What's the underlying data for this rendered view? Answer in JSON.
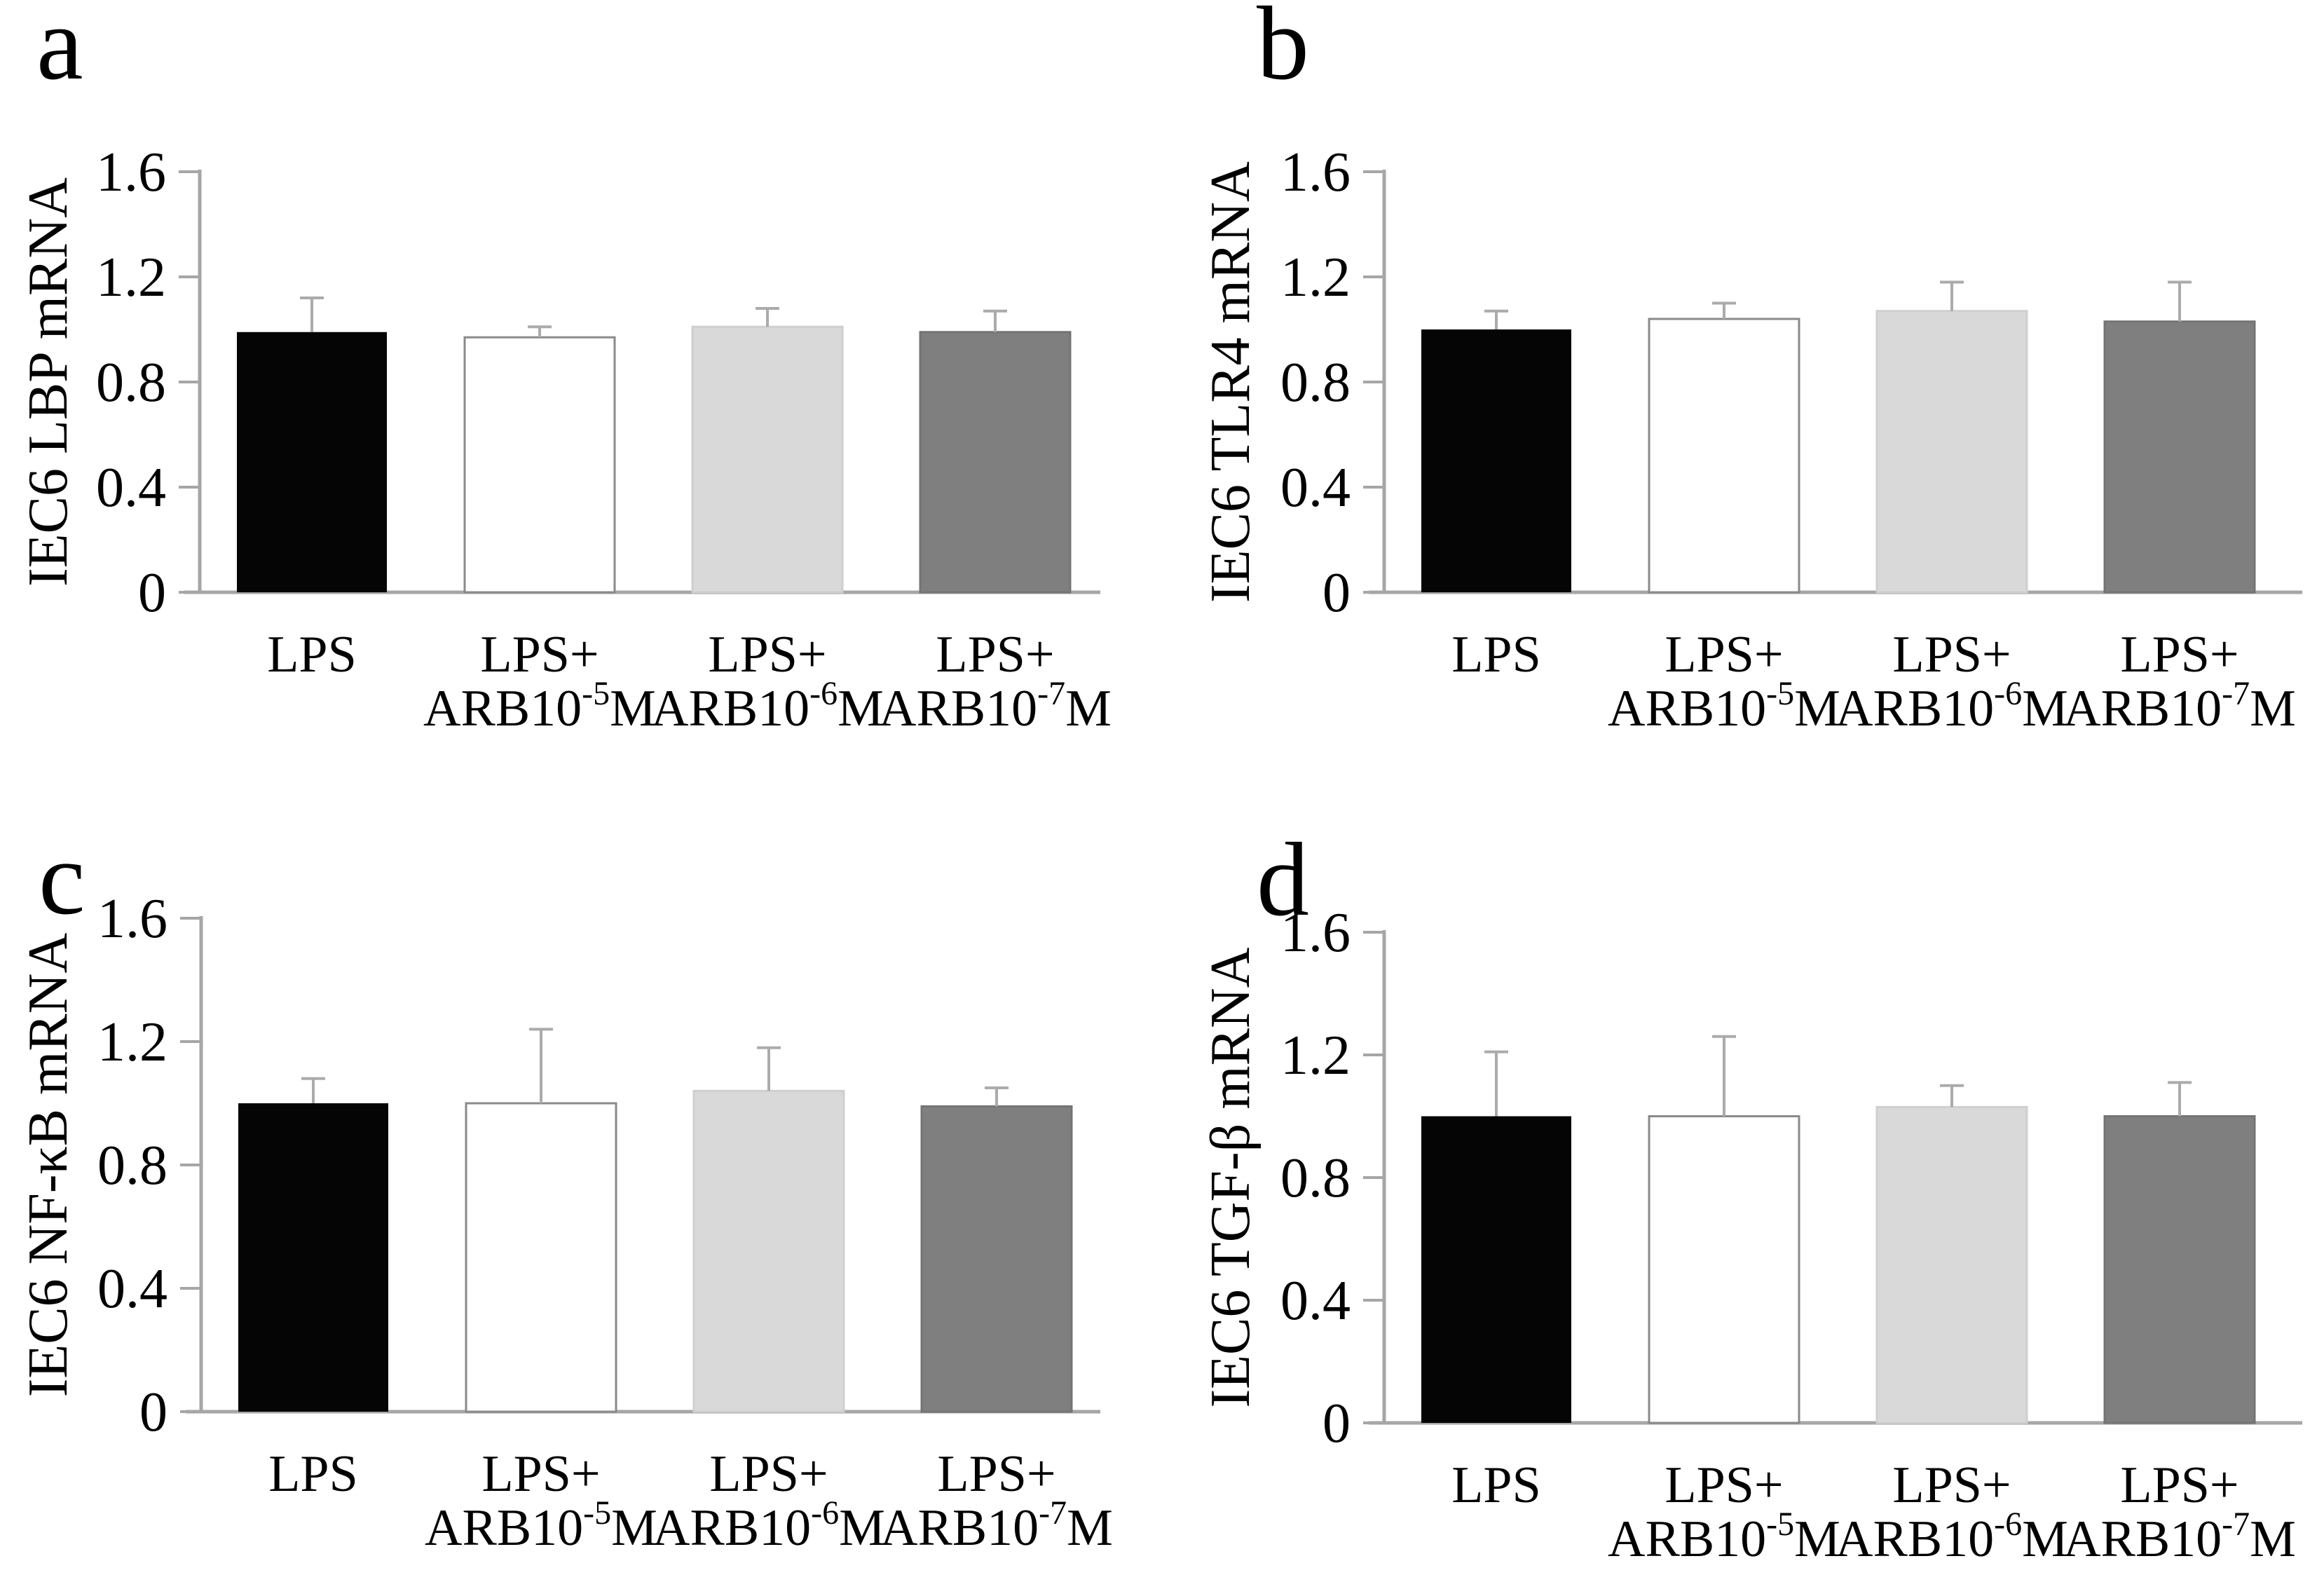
{
  "page": {
    "background": "#ffffff",
    "description": "Four-panel bar chart figure (a-d) showing IEC6 cell mRNA levels under LPS and LPS+ARB treatments"
  },
  "styles": {
    "axis_color": "#a6a6a6",
    "error_bar_color": "#ababab",
    "text_color": "#000000",
    "bar_fills": [
      "#050505",
      "#ffffff",
      "#d9d9d9",
      "#7f7f7f"
    ],
    "bar_strokes": [
      "#050505",
      "#8a8a8a",
      "#cfcfcf",
      "#747474"
    ]
  },
  "categories_rich": [
    {
      "line1": "LPS",
      "line2_pre": "",
      "line2_sup": "",
      "line2_post": ""
    },
    {
      "line1": "LPS+",
      "line2_pre": "ARB10",
      "line2_sup": "-5",
      "line2_post": "M"
    },
    {
      "line1": "LPS+",
      "line2_pre": "ARB10",
      "line2_sup": "-6",
      "line2_post": "M"
    },
    {
      "line1": "LPS+",
      "line2_pre": "ARB10",
      "line2_sup": "-7",
      "line2_post": "M"
    }
  ],
  "category_keys": [
    "lps",
    "lps-arb10-5m",
    "lps-arb10-6m",
    "lps-arb10-7m"
  ],
  "chart_data": [
    {
      "type": "bar",
      "panel": "a",
      "title": "",
      "xlabel": "",
      "ylabel": "IEC6 LBP mRNA",
      "categories": [
        "LPS",
        "LPS+ARB10⁻⁵M",
        "LPS+ARB10⁻⁶M",
        "LPS+ARB10⁻⁷M"
      ],
      "values": [
        0.99,
        0.97,
        1.01,
        0.99
      ],
      "errors_upper": [
        0.13,
        0.04,
        0.07,
        0.08
      ],
      "ylim": [
        0,
        1.6
      ],
      "yticks": [
        0,
        0.4,
        0.8,
        1.2,
        1.6
      ],
      "ytick_labels": [
        "0",
        "0.4",
        "0.8",
        "1.2",
        "1.6"
      ],
      "grid": false,
      "legend": null
    },
    {
      "type": "bar",
      "panel": "b",
      "title": "",
      "xlabel": "",
      "ylabel": "IEC6 TLR4 mRNA",
      "categories": [
        "LPS",
        "LPS+ARB10⁻⁵M",
        "LPS+ARB10⁻⁶M",
        "LPS+ARB10⁻⁷M"
      ],
      "values": [
        1.0,
        1.04,
        1.07,
        1.03
      ],
      "errors_upper": [
        0.07,
        0.06,
        0.11,
        0.15
      ],
      "ylim": [
        0,
        1.6
      ],
      "yticks": [
        0,
        0.4,
        0.8,
        1.2,
        1.6
      ],
      "ytick_labels": [
        "0",
        "0.4",
        "0.8",
        "1.2",
        "1.6"
      ],
      "grid": false,
      "legend": null
    },
    {
      "type": "bar",
      "panel": "c",
      "title": "",
      "xlabel": "",
      "ylabel": "IEC6 NF-κB mRNA",
      "categories": [
        "LPS",
        "LPS+ARB10⁻⁵M",
        "LPS+ARB10⁻⁶M",
        "LPS+ARB10⁻⁷M"
      ],
      "values": [
        1.0,
        1.0,
        1.04,
        0.99
      ],
      "errors_upper": [
        0.08,
        0.24,
        0.14,
        0.06
      ],
      "ylim": [
        0,
        1.6
      ],
      "yticks": [
        0,
        0.4,
        0.8,
        1.2,
        1.6
      ],
      "ytick_labels": [
        "0",
        "0.4",
        "0.8",
        "1.2",
        "1.6"
      ],
      "grid": false,
      "legend": null
    },
    {
      "type": "bar",
      "panel": "d",
      "title": "",
      "xlabel": "",
      "ylabel": "IEC6 TGF-β mRNA",
      "categories": [
        "LPS",
        "LPS+ARB10⁻⁵M",
        "LPS+ARB10⁻⁶M",
        "LPS+ARB10⁻⁷M"
      ],
      "values": [
        1.0,
        1.0,
        1.03,
        1.0
      ],
      "errors_upper": [
        0.21,
        0.26,
        0.07,
        0.11
      ],
      "ylim": [
        0,
        1.6
      ],
      "yticks": [
        0,
        0.4,
        0.8,
        1.2,
        1.6
      ],
      "ytick_labels": [
        "0",
        "0.4",
        "0.8",
        "1.2",
        "1.6"
      ],
      "grid": false,
      "legend": null
    }
  ]
}
